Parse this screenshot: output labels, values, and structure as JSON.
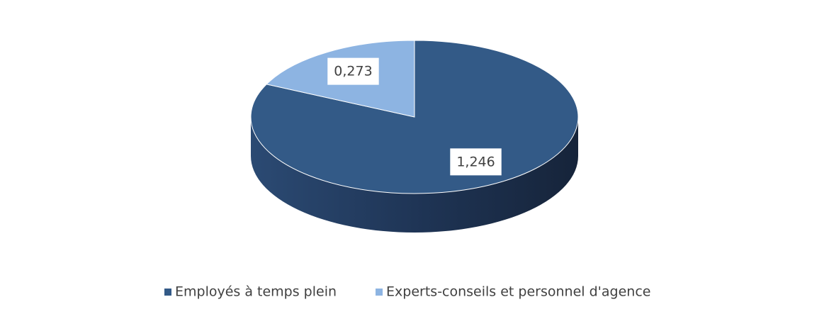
{
  "chart_data": {
    "type": "pie",
    "categories": [
      "Employés à temps plein",
      "Experts-conseils et personnel d'agence"
    ],
    "values": [
      1.246,
      0.273
    ],
    "value_labels": [
      "1,246",
      "0,273"
    ],
    "colors": [
      "#335a87",
      "#8db4e2"
    ],
    "legend": "bottom"
  }
}
